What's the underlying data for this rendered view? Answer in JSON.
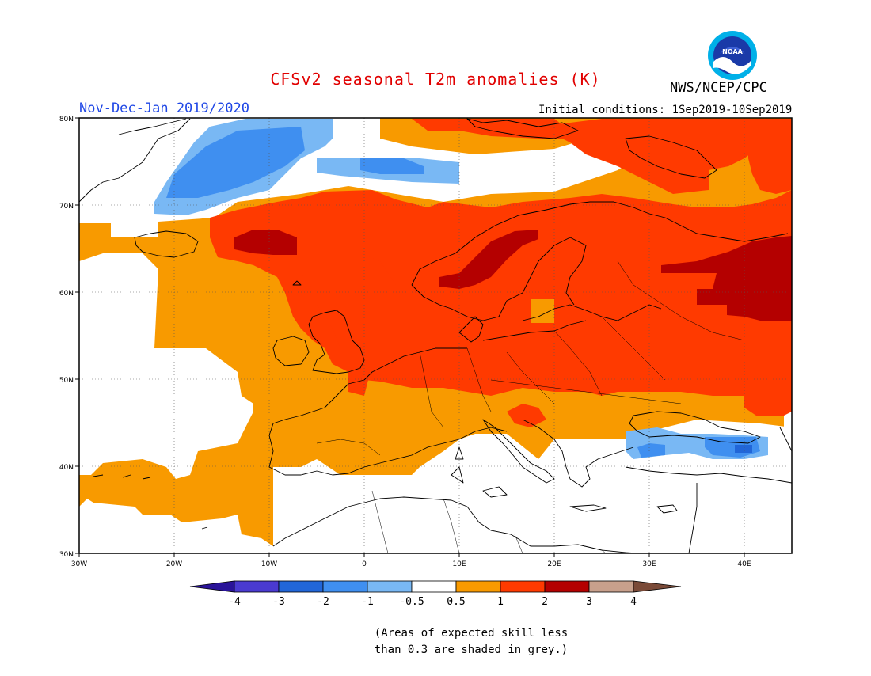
{
  "title": "CFSv2 seasonal T2m anomalies (K)",
  "period": "Nov-Dec-Jan 2019/2020",
  "initial_conditions": "Initial conditions: 1Sep2019-10Sep2019",
  "agency": "NWS/NCEP/CPC",
  "logo_text": "NOAA",
  "note_line1": "(Areas of expected skill less",
  "note_line2": "than 0.3 are shaded in grey.)",
  "colors": {
    "title": "#e10000",
    "period": "#1f47e6",
    "neg4": "#2a1499",
    "neg3": "#4a3ad0",
    "neg2": "#2166d8",
    "neg1": "#3f8ff0",
    "neg05": "#79b8f4",
    "neutral": "#ffffff",
    "pos05": "#f89a00",
    "pos1": "#ff3a00",
    "pos2": "#b40000",
    "pos3": "#c8a08c",
    "pos4": "#7a4a38"
  },
  "map": {
    "lon_range": [
      -30,
      45
    ],
    "lat_range": [
      30,
      80
    ],
    "lon_labels": [
      "30W",
      "20W",
      "10W",
      "0",
      "10E",
      "20E",
      "30E",
      "40E"
    ],
    "lat_labels": [
      "80N",
      "70N",
      "60N",
      "50N",
      "40N",
      "30N"
    ],
    "grid": true
  },
  "legend": {
    "tick_labels": [
      "-4",
      "-3",
      "-2",
      "-1",
      "-0.5",
      "0.5",
      "1",
      "2",
      "3",
      "4"
    ]
  }
}
